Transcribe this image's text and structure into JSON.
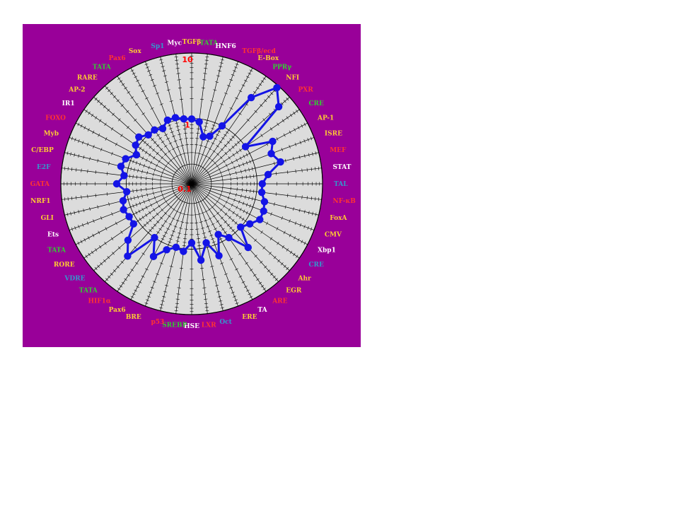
{
  "colors": {
    "panel_bg": "#990099",
    "plot_bg": "#dcdcdc",
    "series": "#1414e6",
    "grid": "#000000",
    "scale_label": "#ff0000",
    "label_palette": {
      "orange": "#ffcc33",
      "red": "#ff3333",
      "green": "#33cc33",
      "white": "#ffffff",
      "blue": "#3399cc"
    }
  },
  "chart_data": {
    "type": "radar",
    "scale": "log",
    "rlim": [
      0.1,
      10
    ],
    "ring_labels": [
      "10",
      "1",
      "0.1"
    ],
    "grid": true,
    "categories": [
      "TGFβ",
      "TATA",
      "HNF6",
      "TGFβ/ecd",
      "E-Box",
      "PPRγ",
      "NFI",
      "PXR",
      "CRE",
      "AP-1",
      "ISRE",
      "MEF",
      "STAT",
      "TAL",
      "NF-κB",
      "FoxA",
      "CMV",
      "Xbp1",
      "CRE",
      "Ahr",
      "EGR",
      "ARE",
      "TA",
      "ERE",
      "Oct",
      "LXR",
      "HSE",
      "SREBP",
      "p53",
      "BRE",
      "Pax6",
      "HIF1α",
      "TATA",
      "VDRE",
      "RORE",
      "TATA",
      "Ets",
      "GLI",
      "NRF1",
      "GATA",
      "E2F",
      "C/EBP",
      "Myb",
      "FOXO",
      "IR1",
      "AP-2",
      "RARE",
      "TATA",
      "Pax6",
      "Sox",
      "Sp1",
      "Myc"
    ],
    "label_colors": [
      "orange",
      "green",
      "white",
      "red",
      "orange",
      "green",
      "orange",
      "red",
      "green",
      "orange",
      "orange",
      "red",
      "white",
      "blue",
      "red",
      "orange",
      "orange",
      "white",
      "blue",
      "orange",
      "orange",
      "red",
      "white",
      "orange",
      "blue",
      "red",
      "white",
      "green",
      "red",
      "orange",
      "orange",
      "red",
      "green",
      "blue",
      "orange",
      "green",
      "white",
      "orange",
      "orange",
      "red",
      "blue",
      "orange",
      "orange",
      "red",
      "white",
      "orange",
      "orange",
      "green",
      "red",
      "orange",
      "blue",
      "white"
    ],
    "series": [
      {
        "values": [
          0.98,
          0.9,
          0.55,
          0.6,
          1.0,
          4.0,
          9.2,
          6.0,
          1.0,
          2.5,
          2.0,
          2.5,
          1.5,
          1.2,
          1.2,
          1.4,
          1.5,
          1.5,
          1.2,
          1.0,
          2.0,
          1.0,
          0.75,
          1.5,
          0.85,
          1.5,
          0.8,
          1.1,
          1.0,
          1.2,
          1.8,
          1.0,
          3.0,
          2.0,
          1.2,
          1.2,
          1.3,
          1.2,
          1.0,
          1.4,
          1.1,
          1.3,
          1.2,
          0.9,
          1.1,
          1.2,
          1.0,
          1.0,
          0.9,
          1.1,
          1.1,
          1.0
        ]
      }
    ]
  }
}
